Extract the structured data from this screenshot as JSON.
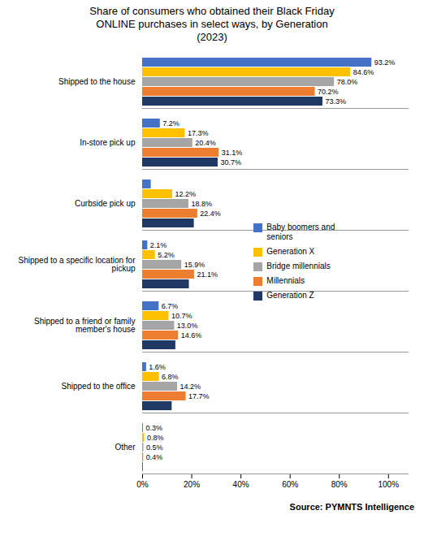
{
  "chart_data": {
    "type": "bar",
    "orientation": "horizontal",
    "title": "Share of consumers who obtained their Black Friday\nONLINE purchases in select ways, by Generation\n(2023)",
    "source": "Source: PYMNTS Intelligence",
    "categories": [
      "Shipped to the house",
      "In-store pick up",
      "Curbside pick up",
      "Shipped to a specific location for\npickup",
      "Shipped to a friend or family\nmember's house",
      "Shipped to the office",
      "Other"
    ],
    "series": [
      {
        "name": "Baby boomers and\nseniors",
        "color": "#4472C4",
        "values": [
          93.2,
          7.2,
          3.5,
          2.1,
          6.7,
          1.6,
          0.3
        ],
        "value_labels": [
          "93.2%",
          "7.2%",
          null,
          "2.1%",
          "6.7%",
          "1.6%",
          "0.3%"
        ]
      },
      {
        "name": "Generation X",
        "color": "#FFC000",
        "values": [
          84.6,
          17.3,
          12.2,
          5.2,
          10.7,
          6.8,
          0.8
        ],
        "value_labels": [
          "84.6%",
          "17.3%",
          "12.2%",
          "5.2%",
          "10.7%",
          "6.8%",
          "0.8%"
        ]
      },
      {
        "name": "Bridge millennials",
        "color": "#A5A5A5",
        "values": [
          78.0,
          20.4,
          18.8,
          15.9,
          13.0,
          14.2,
          0.5
        ],
        "value_labels": [
          "78.0%",
          "20.4%",
          "18.8%",
          "15.9%",
          "13.0%",
          "14.2%",
          "0.5%"
        ]
      },
      {
        "name": "Millennials",
        "color": "#ED7D31",
        "values": [
          70.2,
          31.1,
          22.4,
          21.1,
          14.6,
          17.7,
          0.4
        ],
        "value_labels": [
          "70.2%",
          "31.1%",
          "22.4%",
          "21.1%",
          "14.6%",
          "17.7%",
          "0.4%"
        ]
      },
      {
        "name": "Generation Z",
        "color": "#203864",
        "values": [
          73.3,
          30.7,
          21.0,
          19.0,
          13.5,
          12.0,
          0.25
        ],
        "value_labels": [
          "73.3%",
          "30.7%",
          null,
          null,
          null,
          null,
          null
        ]
      }
    ],
    "xlim": [
      0,
      108
    ],
    "xticks": [
      {
        "value": 0,
        "label": "0%"
      },
      {
        "value": 20,
        "label": "20%"
      },
      {
        "value": 40,
        "label": "40%"
      },
      {
        "value": 60,
        "label": "60%"
      },
      {
        "value": 80,
        "label": "80%"
      },
      {
        "value": 100,
        "label": "100%"
      }
    ],
    "data_labels": true,
    "legend": "right",
    "grid": false
  }
}
